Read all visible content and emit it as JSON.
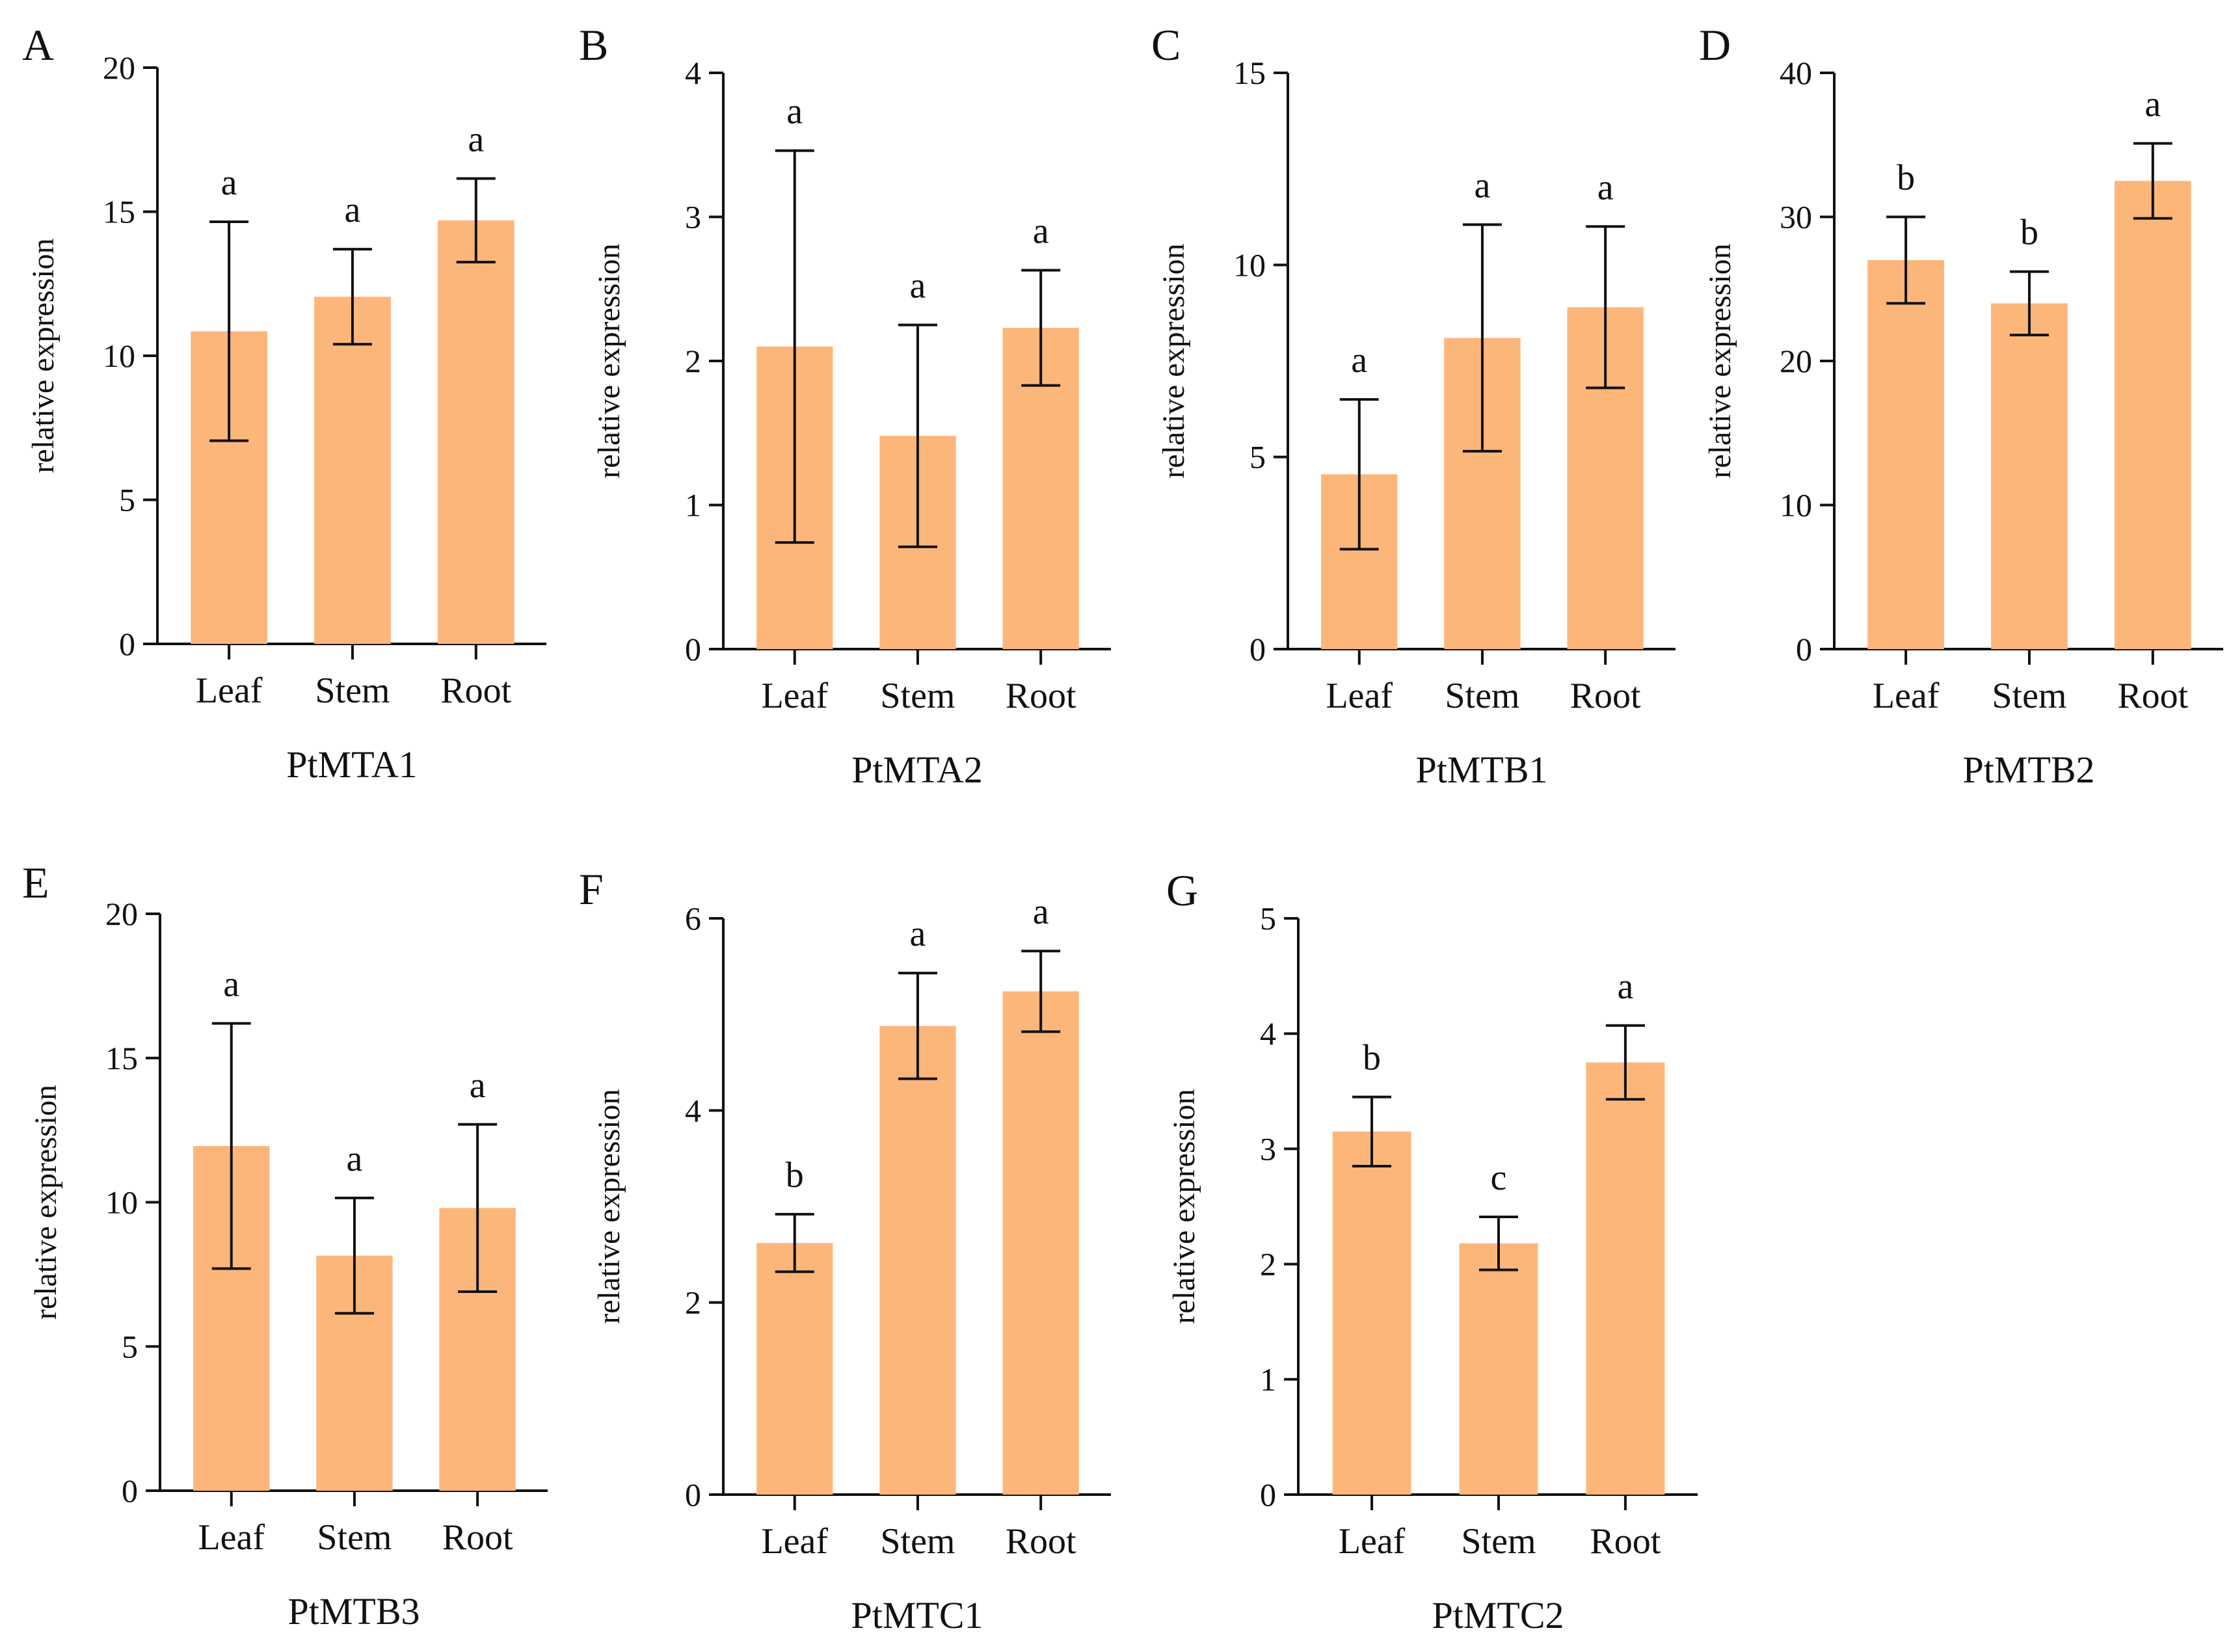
{
  "colors": {
    "bar": "#FDB67A",
    "axis": "#111111"
  },
  "chart_data": [
    {
      "type": "bar",
      "panel": "A",
      "title": "PtMTA1",
      "ylabel": "relative expression",
      "categories": [
        "Leaf",
        "Stem",
        "Root"
      ],
      "values": [
        10.85,
        12.05,
        14.7
      ],
      "errors": [
        3.8,
        1.65,
        1.45
      ],
      "letters": [
        "a",
        "a",
        "a"
      ],
      "ylim": [
        0,
        20
      ],
      "yticks": [
        "0",
        "5",
        "10",
        "15",
        "20"
      ]
    },
    {
      "type": "bar",
      "panel": "B",
      "title": "PtMTA2",
      "ylabel": "relative expression",
      "categories": [
        "Leaf",
        "Stem",
        "Root"
      ],
      "values": [
        2.1,
        1.48,
        2.23
      ],
      "errors": [
        1.36,
        0.77,
        0.4
      ],
      "letters": [
        "a",
        "a",
        "a"
      ],
      "ylim": [
        0,
        4
      ],
      "yticks": [
        "0",
        "1",
        "2",
        "3",
        "4"
      ]
    },
    {
      "type": "bar",
      "panel": "C",
      "title": "PtMTB1",
      "ylabel": "relative expression",
      "categories": [
        "Leaf",
        "Stem",
        "Root"
      ],
      "values": [
        4.55,
        8.1,
        8.9
      ],
      "errors": [
        1.95,
        2.95,
        2.1
      ],
      "letters": [
        "a",
        "a",
        "a"
      ],
      "ylim": [
        0,
        15
      ],
      "yticks": [
        "0",
        "5",
        "10",
        "15"
      ]
    },
    {
      "type": "bar",
      "panel": "D",
      "title": "PtMTB2",
      "ylabel": "relative expression",
      "categories": [
        "Leaf",
        "Stem",
        "Root"
      ],
      "values": [
        27,
        24,
        32.5
      ],
      "errors": [
        3,
        2.2,
        2.6
      ],
      "letters": [
        "b",
        "b",
        "a"
      ],
      "ylim": [
        0,
        40
      ],
      "yticks": [
        "0",
        "10",
        "20",
        "30",
        "40"
      ]
    },
    {
      "type": "bar",
      "panel": "E",
      "title": "PtMTB3",
      "ylabel": "relative expression",
      "categories": [
        "Leaf",
        "Stem",
        "Root"
      ],
      "values": [
        11.95,
        8.15,
        9.8
      ],
      "errors": [
        4.25,
        2.0,
        2.9
      ],
      "letters": [
        "a",
        "a",
        "a"
      ],
      "ylim": [
        0,
        20
      ],
      "yticks": [
        "0",
        "5",
        "10",
        "15",
        "20"
      ]
    },
    {
      "type": "bar",
      "panel": "F",
      "title": "PtMTC1",
      "ylabel": "relative expression",
      "categories": [
        "Leaf",
        "Stem",
        "Root"
      ],
      "values": [
        2.62,
        4.88,
        5.24
      ],
      "errors": [
        0.3,
        0.55,
        0.42
      ],
      "letters": [
        "b",
        "a",
        "a"
      ],
      "ylim": [
        0,
        6
      ],
      "yticks": [
        "0",
        "2",
        "4",
        "6"
      ]
    },
    {
      "type": "bar",
      "panel": "G",
      "title": "PtMTC2",
      "ylabel": "relative expression",
      "categories": [
        "Leaf",
        "Stem",
        "Root"
      ],
      "values": [
        3.15,
        2.18,
        3.75
      ],
      "errors": [
        0.3,
        0.23,
        0.32
      ],
      "letters": [
        "b",
        "c",
        "a"
      ],
      "ylim": [
        0,
        5
      ],
      "yticks": [
        "0",
        "1",
        "2",
        "3",
        "4",
        "5"
      ]
    }
  ]
}
